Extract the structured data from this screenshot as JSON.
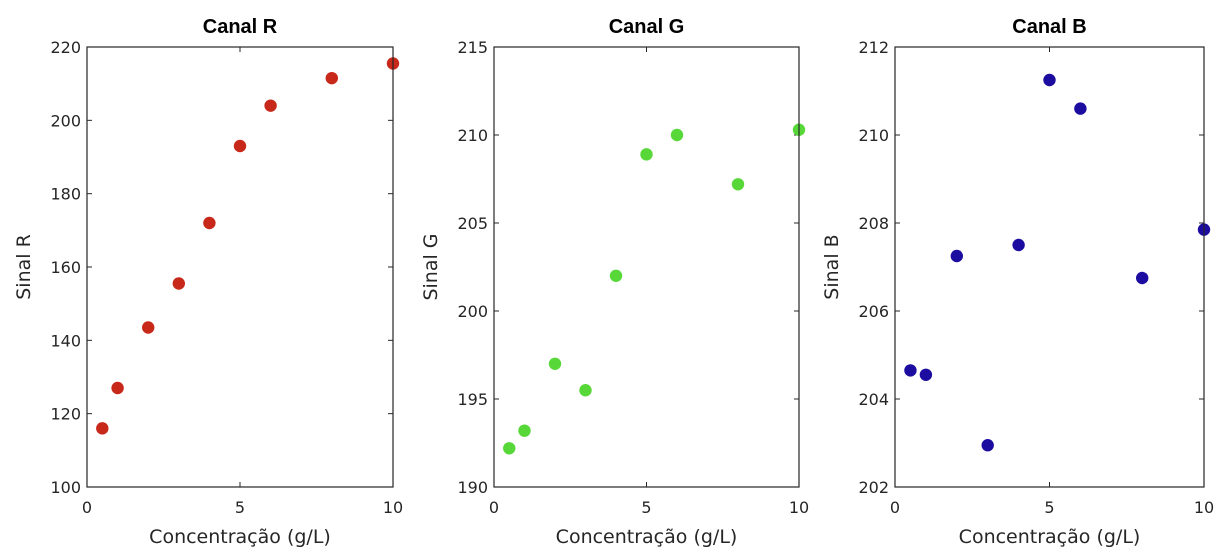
{
  "chart_data": [
    {
      "type": "scatter",
      "title": "Canal R",
      "xlabel": "Concentração (g/L)",
      "ylabel": "Sinal R",
      "xlim": [
        0,
        10
      ],
      "ylim": [
        100,
        220
      ],
      "xticks": [
        "0",
        "5",
        "10"
      ],
      "yticks": [
        "100",
        "120",
        "140",
        "160",
        "180",
        "200",
        "220"
      ],
      "grid": false,
      "color": "#c8281a",
      "series": [
        {
          "x": [
            0.5,
            1,
            2,
            3,
            4,
            5,
            6,
            8,
            10
          ],
          "y": [
            116,
            127,
            143.5,
            155.5,
            172,
            193,
            204,
            211.5,
            215.5
          ]
        }
      ]
    },
    {
      "type": "scatter",
      "title": "Canal G",
      "xlabel": "Concentração (g/L)",
      "ylabel": "Sinal G",
      "xlim": [
        0,
        10
      ],
      "ylim": [
        190,
        215
      ],
      "xticks": [
        "0",
        "5",
        "10"
      ],
      "yticks": [
        "190",
        "195",
        "200",
        "205",
        "210",
        "215"
      ],
      "grid": false,
      "color": "#57d838",
      "series": [
        {
          "x": [
            0.5,
            1,
            2,
            3,
            4,
            5,
            6,
            8,
            10
          ],
          "y": [
            192.2,
            193.2,
            197,
            195.5,
            202,
            208.9,
            210,
            207.2,
            210.3
          ]
        }
      ]
    },
    {
      "type": "scatter",
      "title": "Canal B",
      "xlabel": "Concentração (g/L)",
      "ylabel": "Sinal B",
      "xlim": [
        0,
        10
      ],
      "ylim": [
        202,
        212
      ],
      "xticks": [
        "0",
        "5",
        "10"
      ],
      "yticks": [
        "202",
        "204",
        "206",
        "208",
        "210",
        "212"
      ],
      "grid": false,
      "color": "#1c0da0",
      "series": [
        {
          "x": [
            0.5,
            1,
            2,
            3,
            4,
            5,
            6,
            8,
            10
          ],
          "y": [
            204.65,
            204.55,
            207.25,
            202.95,
            207.5,
            211.25,
            210.6,
            206.75,
            207.85
          ]
        }
      ]
    }
  ]
}
